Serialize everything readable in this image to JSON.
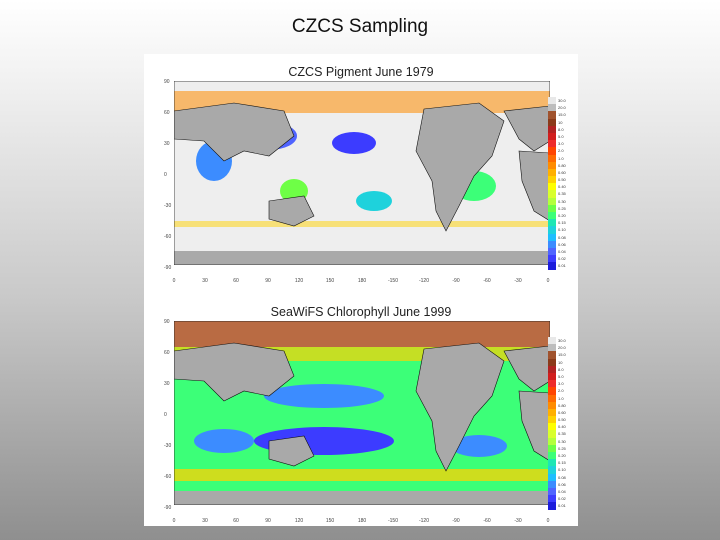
{
  "slide": {
    "title": "CZCS Sampling"
  },
  "panels": [
    {
      "title": "CZCS Pigment June 1979",
      "coverage": "sparse"
    },
    {
      "title": "SeaWiFS Chlorophyll June 1999",
      "coverage": "full"
    }
  ],
  "axes": {
    "y_ticks": [
      "90",
      "60",
      "30",
      "0",
      "-30",
      "-60",
      "-90"
    ],
    "x_ticks": [
      "0",
      "30",
      "60",
      "90",
      "120",
      "150",
      "180",
      "-150",
      "-120",
      "-90",
      "-60",
      "-30",
      "0"
    ]
  },
  "colorbar": {
    "labels": [
      "30.0",
      "20.0",
      "15.0",
      "10",
      "8.0",
      "5.0",
      "3.0",
      "2.0",
      "1.0",
      "0.80",
      "0.60",
      "0.50",
      "0.40",
      "0.35",
      "0.30",
      "0.25",
      "0.20",
      "0.15",
      "0.10",
      "0.08",
      "0.06",
      "0.04",
      "0.02",
      "0.01"
    ],
    "colors": [
      "#e8e8e8",
      "#bdbdbd",
      "#a0522d",
      "#8b3a1a",
      "#b22222",
      "#d21e1e",
      "#ee2c2c",
      "#ff4500",
      "#ff6a00",
      "#ff8c00",
      "#ffb000",
      "#ffd200",
      "#ffff00",
      "#d8ff2e",
      "#b4ff3c",
      "#6eff46",
      "#3cff78",
      "#1ee6b4",
      "#1ed2dc",
      "#1ebeff",
      "#3c8cff",
      "#5064ff",
      "#3c3cff",
      "#1e1edc"
    ]
  },
  "colors": {
    "land": "#a9a9a9",
    "no_data": "#eeeeee",
    "coast": "#111111"
  }
}
